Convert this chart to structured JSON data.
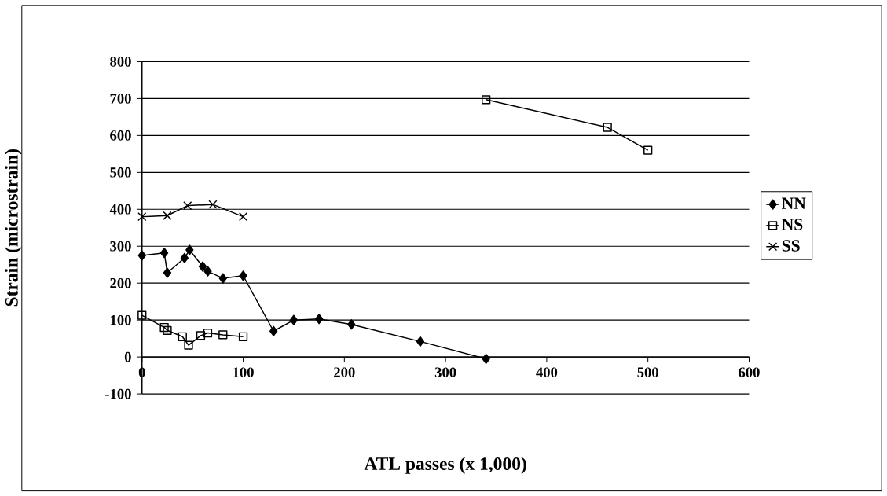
{
  "chart_data": {
    "type": "line",
    "xlabel": "ATL passes    (x 1,000)",
    "ylabel": "Strain    (microstrain)",
    "xlim": [
      0,
      600
    ],
    "ylim": [
      -100,
      800
    ],
    "xticks": [
      0,
      100,
      200,
      300,
      400,
      500,
      600
    ],
    "yticks": [
      -100,
      0,
      100,
      200,
      300,
      400,
      500,
      600,
      700,
      800
    ],
    "grid": "y",
    "legend": "right",
    "line_style": "solid",
    "series": [
      {
        "name": "NN",
        "color": "#000000",
        "marker": "diamond",
        "x": [
          0,
          22,
          25,
          42,
          47,
          60,
          65,
          80,
          100,
          130,
          150,
          175,
          207,
          275,
          340
        ],
        "values": [
          275,
          282,
          228,
          268,
          290,
          245,
          232,
          213,
          220,
          70,
          100,
          103,
          88,
          42,
          -5
        ]
      },
      {
        "name": "NS",
        "color": "#000000",
        "marker": "square",
        "x": [
          0,
          22,
          25,
          40,
          46,
          58,
          65,
          80,
          100,
          220,
          340,
          460,
          500
        ],
        "values": [
          113,
          80,
          72,
          55,
          32,
          58,
          65,
          60,
          55,
          null,
          697,
          622,
          560
        ]
      },
      {
        "name": "SS",
        "color": "#000000",
        "marker": "cross",
        "x": [
          0,
          25,
          45,
          70,
          100
        ],
        "values": [
          380,
          383,
          410,
          413,
          380
        ]
      }
    ]
  }
}
